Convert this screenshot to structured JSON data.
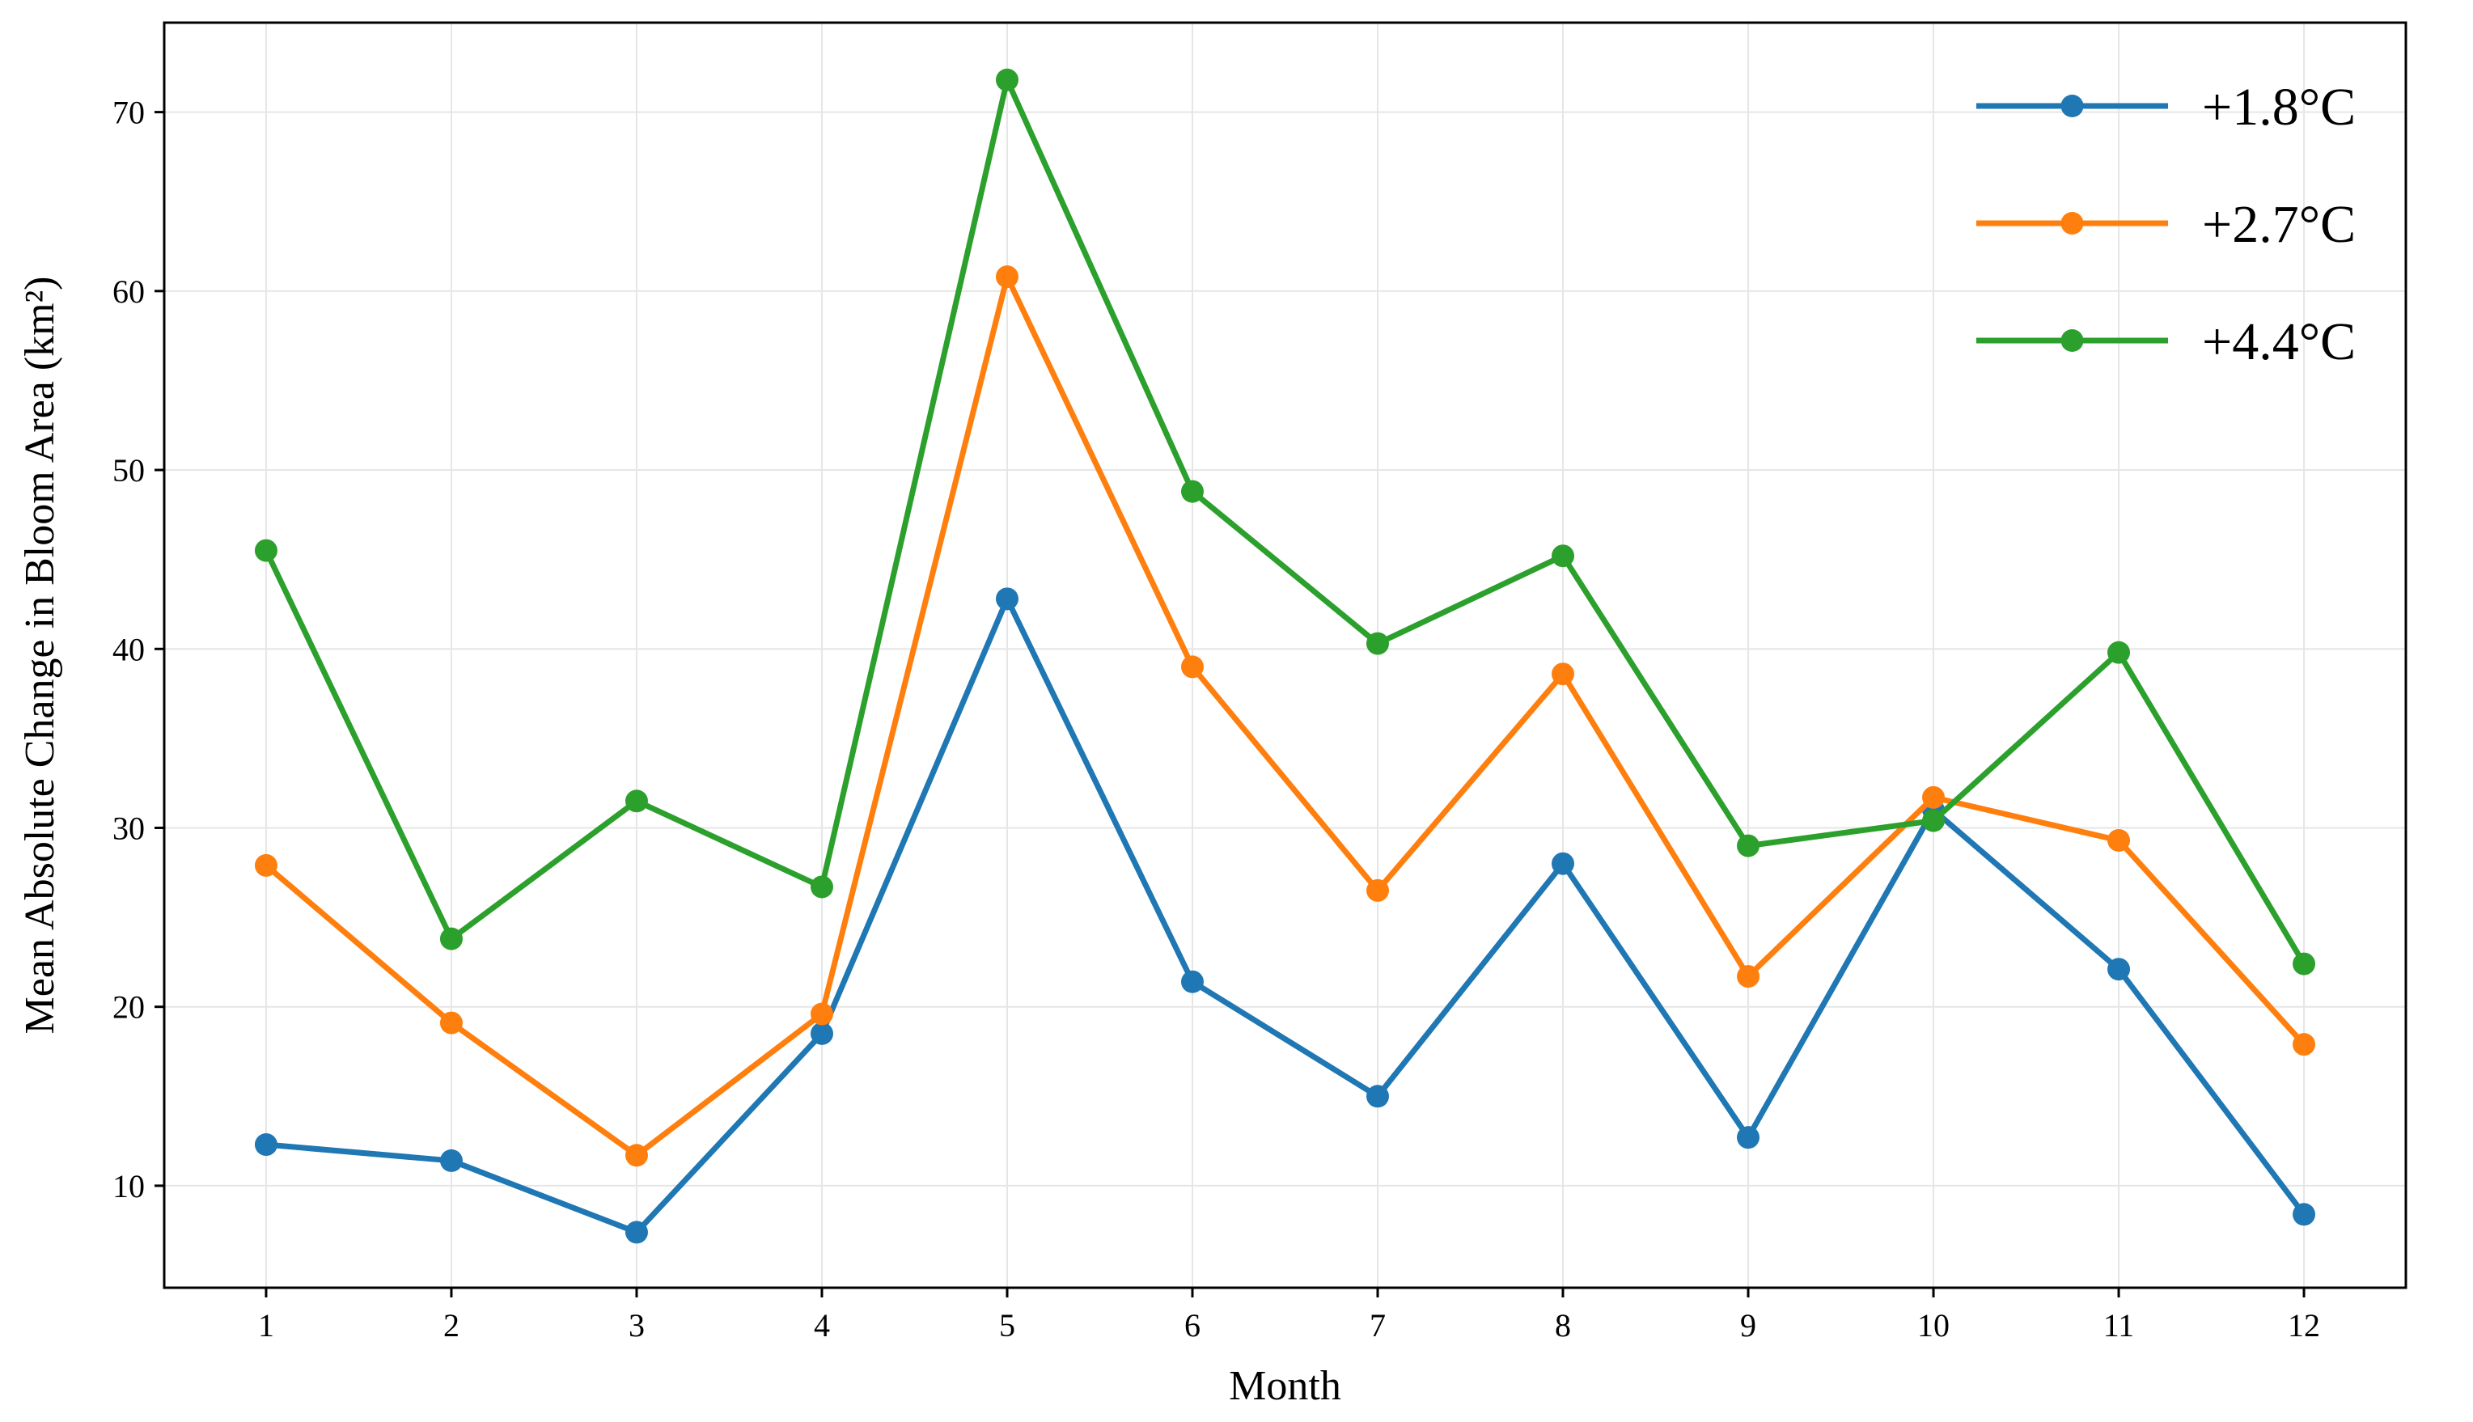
{
  "chart_data": {
    "type": "line",
    "title": "",
    "xlabel": "Month",
    "ylabel": "Mean Absolute Change in Bloom Area (km²)",
    "x": [
      1,
      2,
      3,
      4,
      5,
      6,
      7,
      8,
      9,
      10,
      11,
      12
    ],
    "xlim": [
      0.45,
      12.55
    ],
    "ylim": [
      4.3,
      75.0
    ],
    "yticks": [
      10,
      20,
      30,
      40,
      50,
      60,
      70
    ],
    "grid": true,
    "legend_position": "top-right",
    "series": [
      {
        "name": "+1.8°C",
        "color": "#1f77b4",
        "values": [
          12.3,
          11.4,
          7.4,
          18.5,
          42.8,
          21.4,
          15.0,
          28.0,
          12.7,
          31.0,
          22.1,
          8.4
        ]
      },
      {
        "name": "+2.7°C",
        "color": "#ff7f0e",
        "values": [
          27.9,
          19.1,
          11.7,
          19.6,
          60.8,
          39.0,
          26.5,
          38.6,
          21.7,
          31.7,
          29.3,
          17.9
        ]
      },
      {
        "name": "+4.4°C",
        "color": "#2ca02c",
        "values": [
          45.5,
          23.8,
          31.5,
          26.7,
          71.8,
          48.8,
          40.3,
          45.2,
          29.0,
          30.4,
          39.8,
          22.4
        ]
      }
    ]
  }
}
